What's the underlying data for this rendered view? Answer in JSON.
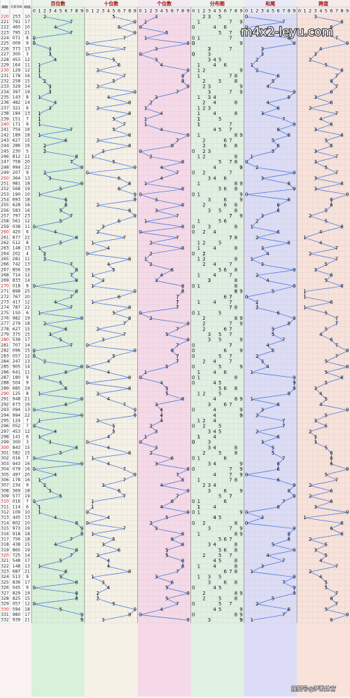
{
  "chart_data": {
    "type": "trend",
    "column_headers": [
      "期数",
      "开奖号码",
      "和值"
    ],
    "digit_headers": [
      0,
      1,
      2,
      3,
      4,
      5,
      6,
      7,
      8,
      9
    ],
    "line_color": "#3a6fd8",
    "panels": [
      {
        "title": "百位数",
        "color": "#d9f0d9",
        "values": [
          2,
          7,
          4,
          7,
          0,
          0,
          3,
          3,
          4,
          1,
          1,
          1,
          2,
          3,
          3,
          1,
          4,
          3,
          1,
          1,
          1,
          7,
          1,
          6,
          2,
          2,
          8,
          7,
          9,
          2,
          3,
          9,
          5,
          1,
          6,
          6,
          5,
          7,
          5,
          0,
          4,
          8,
          5,
          1,
          2,
          2,
          7,
          8,
          7,
          8,
          0,
          8,
          7,
          4,
          7,
          1,
          9,
          2,
          6,
          3,
          5,
          7,
          0,
          0,
          2,
          9,
          6,
          1,
          5,
          6,
          1,
          9,
          6,
          0,
          9,
          1,
          0,
          4,
          1,
          3,
          8,
          5,
          0,
          9,
          0,
          4,
          1,
          2,
          3,
          5,
          0,
          1,
          1,
          4,
          8,
          9,
          9,
          7,
          4,
          8,
          7,
          5,
          1,
          6,
          5,
          8,
          0,
          8,
          8,
          0,
          5,
          9,
          9
        ]
      },
      {
        "title": "十位数",
        "color": "#f6f1e6",
        "values": [
          5,
          9,
          6,
          9,
          7,
          0,
          7,
          0,
          5,
          6,
          2,
          7,
          5,
          2,
          9,
          4,
          8,
          2,
          8,
          5,
          7,
          5,
          8,
          2,
          8,
          3,
          1,
          5,
          9,
          0,
          6,
          8,
          6,
          9,
          9,
          2,
          8,
          9,
          6,
          3,
          2,
          7,
          1,
          4,
          0,
          8,
          4,
          5,
          1,
          3,
          1,
          9,
          6,
          1,
          8,
          5,
          8,
          7,
          2,
          7,
          3,
          0,
          9,
          5,
          4,
          0,
          4,
          8,
          0,
          8,
          2,
          4,
          7,
          9,
          9,
          2,
          5,
          5,
          4,
          0,
          4,
          8,
          1,
          4,
          7,
          9,
          7,
          3,
          6,
          7,
          1,
          1,
          0,
          4,
          0,
          7,
          1,
          5,
          3,
          6,
          2,
          4,
          4,
          8,
          1,
          3,
          4,
          2,
          2,
          5,
          9,
          8,
          3
        ]
      },
      {
        "title": "个位数",
        "color": "#f6d9e8",
        "values": [
          3,
          1,
          0,
          5,
          1,
          9,
          3,
          0,
          3,
          4,
          9,
          8,
          8,
          9,
          7,
          3,
          2,
          1,
          4,
          1,
          1,
          4,
          9,
          7,
          6,
          0,
          2,
          8,
          4,
          7,
          4,
          1,
          8,
          0,
          3,
          8,
          3,
          7,
          1,
          8,
          0,
          7,
          2,
          8,
          2,
          1,
          2,
          6,
          4,
          3,
          8,
          8,
          7,
          7,
          7,
          0,
          2,
          9,
          7,
          5,
          9,
          7,
          6,
          7,
          7,
          5,
          1,
          0,
          4,
          5,
          5,
          8,
          3,
          4,
          4,
          4,
          2,
          3,
          1,
          0,
          3,
          2,
          6,
          3,
          9,
          7,
          8,
          4,
          9,
          7,
          6,
          4,
          9,
          5,
          2,
          3,
          8,
          6,
          8,
          5,
          5,
          8,
          8,
          7,
          3,
          6,
          5,
          9,
          5,
          7,
          4,
          0,
          9
        ]
      },
      {
        "title": "分布图",
        "color": "#e0f0e2"
      },
      {
        "title": "和尾",
        "color": "#dcdcf6",
        "values": [
          0,
          7,
          0,
          1,
          8,
          9,
          3,
          3,
          2,
          1,
          2,
          6,
          5,
          4,
          9,
          8,
          4,
          6,
          3,
          7,
          9,
          6,
          8,
          5,
          6,
          5,
          1,
          0,
          2,
          9,
          3,
          8,
          9,
          0,
          8,
          6,
          6,
          3,
          2,
          1,
          6,
          2,
          8,
          3,
          4,
          1,
          3,
          9,
          2,
          4,
          9,
          5,
          0,
          2,
          2,
          6,
          9,
          8,
          5,
          5,
          7,
          4,
          5,
          2,
          3,
          4,
          1,
          9,
          9,
          9,
          8,
          1,
          6,
          3,
          2,
          7,
          7,
          2,
          6,
          3,
          5,
          5,
          7,
          6,
          6,
          0,
          6,
          9,
          8,
          9,
          7,
          6,
          0,
          3,
          0,
          9,
          8,
          8,
          5,
          9,
          4,
          7,
          3,
          1,
          9,
          7,
          9,
          9,
          5,
          2,
          8,
          7,
          1
        ]
      },
      {
        "title": "跨度",
        "color": "#f8e2da",
        "values": [
          3,
          8,
          6,
          4,
          7,
          9,
          4,
          3,
          2,
          5,
          8,
          7,
          6,
          7,
          6,
          3,
          6,
          2,
          7,
          4,
          6,
          3,
          8,
          5,
          6,
          3,
          7,
          3,
          5,
          7,
          3,
          8,
          3,
          9,
          6,
          6,
          5,
          2,
          5,
          8,
          4,
          1,
          4,
          7,
          2,
          7,
          5,
          3,
          6,
          5,
          8,
          1,
          1,
          6,
          1,
          5,
          7,
          7,
          5,
          4,
          6,
          7,
          9,
          7,
          5,
          9,
          5,
          8,
          5,
          3,
          4,
          5,
          4,
          9,
          5,
          3,
          5,
          2,
          3,
          3,
          5,
          6,
          6,
          6,
          9,
          5,
          7,
          2,
          6,
          2,
          6,
          3,
          9,
          1,
          8,
          6,
          8,
          2,
          5,
          3,
          5,
          4,
          7,
          2,
          4,
          5,
          5,
          7,
          6,
          7,
          5,
          9,
          6
        ]
      }
    ],
    "issues": [
      220,
      221,
      222,
      223,
      224,
      225,
      226,
      227,
      228,
      229,
      230,
      231,
      232,
      233,
      234,
      235,
      236,
      237,
      238,
      239,
      240,
      241,
      242,
      243,
      244,
      245,
      246,
      247,
      248,
      249,
      250,
      251,
      252,
      253,
      254,
      255,
      256,
      257,
      258,
      259,
      260,
      261,
      262,
      263,
      264,
      265,
      266,
      267,
      268,
      269,
      270,
      271,
      272,
      273,
      274,
      275,
      276,
      277,
      278,
      279,
      280,
      281,
      282,
      283,
      284,
      285,
      286,
      287,
      288,
      289,
      290,
      291,
      292,
      293,
      294,
      295,
      296,
      297,
      298,
      299,
      300,
      301,
      302,
      303,
      304,
      305,
      306,
      307,
      308,
      309,
      310,
      311,
      312,
      313,
      314,
      315,
      316,
      317,
      318,
      319,
      320,
      321,
      322,
      323,
      324,
      325,
      326,
      327,
      328,
      329,
      330,
      331,
      332
    ],
    "numbers": [
      "253",
      "791",
      "460",
      "795",
      "071",
      "009",
      "373",
      "300",
      "453",
      "164",
      "129",
      "178",
      "258",
      "329",
      "397",
      "143",
      "482",
      "321",
      "184",
      "151",
      "171",
      "754",
      "189",
      "627",
      "286",
      "230",
      "812",
      "758",
      "994",
      "207",
      "364",
      "981",
      "568",
      "190",
      "693",
      "628",
      "583",
      "797",
      "561",
      "038",
      "420",
      "877",
      "512",
      "148",
      "202",
      "281",
      "742",
      "856",
      "714",
      "833",
      "018",
      "898",
      "767",
      "417",
      "787",
      "150",
      "982",
      "279",
      "627",
      "375",
      "539",
      "707",
      "096",
      "057",
      "247",
      "905",
      "641",
      "180",
      "504",
      "685",
      "125",
      "948",
      "673",
      "094",
      "994",
      "124",
      "052",
      "453",
      "141",
      "300",
      "843",
      "582",
      "016",
      "943",
      "079",
      "497",
      "178",
      "234",
      "369",
      "577",
      "016",
      "114",
      "109",
      "445",
      "802",
      "973",
      "918",
      "756",
      "438",
      "865",
      "725",
      "548",
      "148",
      "687",
      "513",
      "836",
      "045",
      "829",
      "825",
      "057",
      "594",
      "980",
      "939"
    ],
    "sums": [
      10,
      17,
      10,
      21,
      8,
      9,
      13,
      3,
      12,
      11,
      12,
      16,
      15,
      14,
      19,
      8,
      14,
      6,
      13,
      7,
      9,
      16,
      18,
      15,
      16,
      5,
      11,
      20,
      22,
      9,
      13,
      18,
      19,
      10,
      18,
      16,
      16,
      23,
      12,
      11,
      6,
      22,
      8,
      13,
      4,
      11,
      13,
      19,
      12,
      14,
      9,
      25,
      20,
      12,
      22,
      6,
      19,
      18,
      15,
      15,
      17,
      14,
      15,
      12,
      13,
      14,
      11,
      9,
      9,
      19,
      8,
      21,
      16,
      13,
      22,
      7,
      7,
      12,
      6,
      3,
      15,
      15,
      7,
      16,
      16,
      20,
      16,
      9,
      18,
      19,
      7,
      6,
      10,
      13,
      10,
      19,
      18,
      18,
      15,
      19,
      14,
      17,
      13,
      21,
      9,
      17,
      9,
      19,
      15,
      12,
      18,
      17,
      21
    ],
    "watermarks": [
      "m4x2-leyu.com",
      "搜狐号@梦歌体育"
    ]
  }
}
